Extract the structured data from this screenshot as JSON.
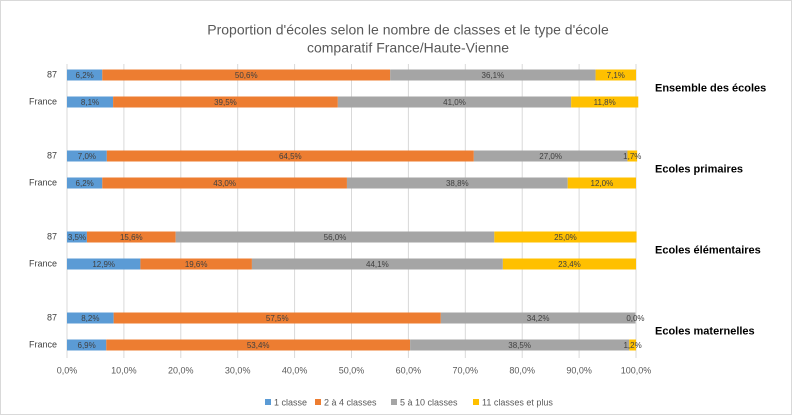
{
  "chart_data": {
    "type": "stacked-barh",
    "title": "Proportion d'écoles selon le nombre de classes et le type d'école",
    "subtitle": "comparatif France/Haute-Vienne",
    "categories": [
      "87",
      "France",
      "87",
      "France",
      "87",
      "France",
      "87",
      "France"
    ],
    "group_labels": [
      "Ensemble des écoles",
      "Ecoles primaires",
      "Ecoles élémentaires",
      "Ecoles maternelles"
    ],
    "series": [
      {
        "name": "1 classe",
        "color": "#5b9bd5",
        "values": [
          6.2,
          8.1,
          7.0,
          6.2,
          3.5,
          12.9,
          8.2,
          6.9
        ],
        "value_labels": [
          "6,2%",
          "8,1%",
          "7,0%",
          "6,2%",
          "3,5%",
          "12,9%",
          "8,2%",
          "6,9%"
        ]
      },
      {
        "name": "2 à 4 classes",
        "color": "#ed7d31",
        "values": [
          50.6,
          39.5,
          64.5,
          43.0,
          15.6,
          19.6,
          57.5,
          53.4
        ],
        "value_labels": [
          "50,6%",
          "39,5%",
          "64,5%",
          "43,0%",
          "15,6%",
          "19,6%",
          "57,5%",
          "53,4%"
        ]
      },
      {
        "name": "5 à 10 classes",
        "color": "#a5a5a5",
        "values": [
          36.1,
          41.0,
          27.0,
          38.8,
          56.0,
          44.1,
          34.2,
          38.5
        ],
        "value_labels": [
          "36,1%",
          "41,0%",
          "27,0%",
          "38,8%",
          "56,0%",
          "44,1%",
          "34,2%",
          "38,5%"
        ]
      },
      {
        "name": "11 classes et plus",
        "color": "#ffc000",
        "values": [
          7.1,
          11.8,
          1.7,
          12.0,
          25.0,
          23.4,
          0.0,
          1.2
        ],
        "value_labels": [
          "7,1%",
          "11,8%",
          "1,7%",
          "12,0%",
          "25,0%",
          "23,4%",
          "0,0%",
          "1,2%"
        ]
      }
    ],
    "xlim": [
      0,
      100
    ],
    "xticks": [
      {
        "value": 0,
        "label": "0,0%"
      },
      {
        "value": 10,
        "label": "10,0%"
      },
      {
        "value": 20,
        "label": "20,0%"
      },
      {
        "value": 30,
        "label": "30,0%"
      },
      {
        "value": 40,
        "label": "40,0%"
      },
      {
        "value": 50,
        "label": "50,0%"
      },
      {
        "value": 60,
        "label": "60,0%"
      },
      {
        "value": 70,
        "label": "70,0%"
      },
      {
        "value": 80,
        "label": "80,0%"
      },
      {
        "value": 90,
        "label": "90,0%"
      },
      {
        "value": 100,
        "label": "100,0%"
      }
    ],
    "grid": true,
    "legend": "bottom"
  }
}
